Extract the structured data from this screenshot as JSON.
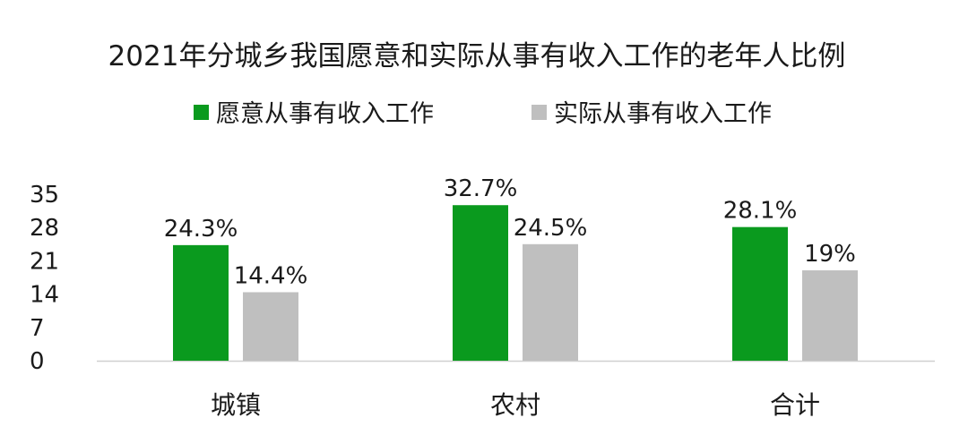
{
  "chart_data": {
    "type": "bar",
    "title": "2021年分城乡我国愿意和实际从事有收入工作的老年人比例",
    "categories": [
      "城镇",
      "农村",
      "合计"
    ],
    "series": [
      {
        "name": "愿意从事有收入工作",
        "values": [
          24.3,
          32.7,
          28.1
        ],
        "labels": [
          "24.3%",
          "32.7%",
          "28.1%"
        ],
        "color": "#0a9a1e"
      },
      {
        "name": "实际从事有收入工作",
        "values": [
          14.4,
          24.5,
          19.0
        ],
        "labels": [
          "14.4%",
          "24.5%",
          "19%"
        ],
        "color": "#bfbfbf"
      }
    ],
    "yticks": [
      "0",
      "7",
      "14",
      "21",
      "28",
      "35"
    ],
    "ylim": [
      0,
      35
    ],
    "xlabel": "",
    "ylabel": "",
    "grid": false,
    "legend_position": "top"
  }
}
